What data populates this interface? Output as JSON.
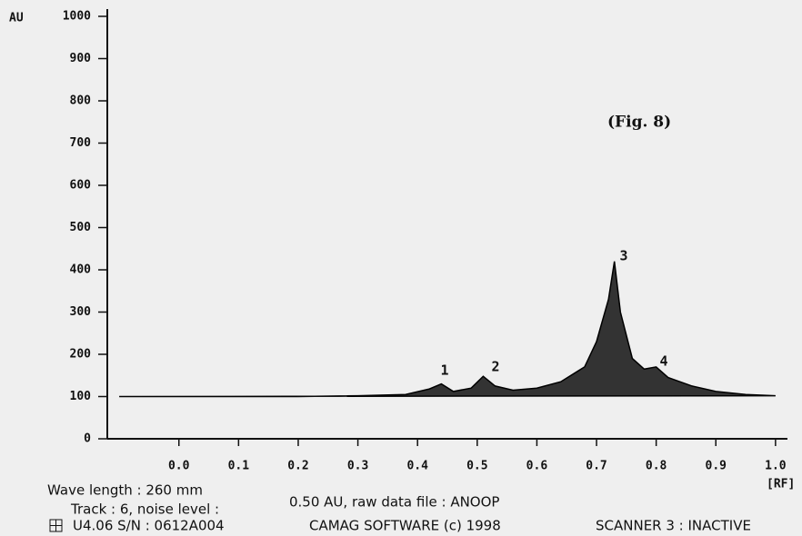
{
  "chart_data": {
    "type": "area",
    "y_label": "AU",
    "x_label": "[RF]",
    "annotation": "(Fig. 8)",
    "peak_labels": [
      "1",
      "2",
      "3",
      "4"
    ],
    "x": [
      -0.1,
      0.0,
      0.1,
      0.2,
      0.3,
      0.38,
      0.42,
      0.44,
      0.46,
      0.49,
      0.51,
      0.53,
      0.56,
      0.6,
      0.64,
      0.68,
      0.7,
      0.72,
      0.73,
      0.74,
      0.76,
      0.78,
      0.8,
      0.82,
      0.86,
      0.9,
      0.95,
      1.0
    ],
    "values": [
      100,
      100,
      100,
      100,
      102,
      105,
      118,
      130,
      112,
      120,
      148,
      125,
      115,
      120,
      135,
      170,
      230,
      330,
      420,
      300,
      190,
      165,
      170,
      145,
      125,
      112,
      105,
      102
    ],
    "color": "#333333",
    "xlim": [
      -0.12,
      1.02
    ],
    "ylim": [
      0,
      1000
    ],
    "xticks": [
      {
        "value": 0,
        "label": "0.0"
      },
      0.1,
      0.2,
      0.3,
      0.4,
      0.5,
      0.6,
      0.7,
      0.8,
      0.9,
      {
        "value": 1,
        "label": "1.0"
      }
    ],
    "yticks": [
      0,
      100,
      200,
      300,
      400,
      500,
      600,
      700,
      800,
      900,
      1000
    ],
    "footer": {
      "wavelength": "Wave length : 260 mm",
      "track": "Track :   6,  noise level :",
      "noise": "0.50 AU, raw data file : ANOOP",
      "version": "U4.06 S/N : 0612A004",
      "software": "CAMAG SOFTWARE (c) 1998",
      "scanner": "SCANNER 3  : INACTIVE"
    }
  }
}
